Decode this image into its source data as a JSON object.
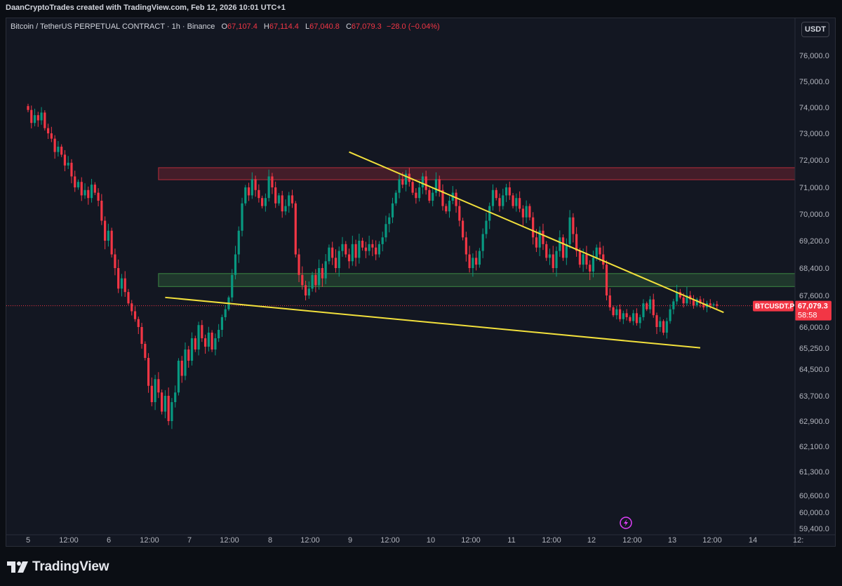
{
  "header": {
    "credit": "DaanCryptoTrades created with TradingView.com, Feb 12, 2026 10:01 UTC+1"
  },
  "legend": {
    "symbol": "Bitcoin / TetherUS PERPETUAL CONTRACT · 1h · Binance",
    "open_key": "O",
    "open": "67,107.4",
    "high_key": "H",
    "high": "67,114.4",
    "low_key": "L",
    "low": "67,040.8",
    "close_key": "C",
    "close": "67,079.3",
    "change": "−28.0 (−0.04%)"
  },
  "currency_button": "USDT",
  "price_axis": {
    "ticks": [
      "76,000.0",
      "75,000.0",
      "74,000.0",
      "73,000.0",
      "72,000.0",
      "71,000.0",
      "70,000.0",
      "69,200.0",
      "68,400.0",
      "67,600.0",
      "66,000.0",
      "65,250.0",
      "64,500.0",
      "63,700.0",
      "62,900.0",
      "62,100.0",
      "61,300.0",
      "60,600.0",
      "60,000.0",
      "59,400.0"
    ],
    "tick_values": [
      76000,
      75000,
      74000,
      73000,
      72000,
      71000,
      70000,
      69200,
      68400,
      67600,
      66000,
      65250,
      64500,
      63700,
      62900,
      62100,
      61300,
      60600,
      60000,
      59400
    ]
  },
  "time_axis": {
    "labels": [
      "5",
      "12:00",
      "6",
      "12:00",
      "7",
      "12:00",
      "8",
      "12:00",
      "9",
      "12:00",
      "10",
      "12:00",
      "11",
      "12:00",
      "12",
      "12:00",
      "13",
      "12:00",
      "14",
      "12:"
    ],
    "start_hours": 0
  },
  "price_tag": {
    "symbol": "BTCUSDT.P",
    "price": "67,079.3",
    "countdown": "58:58",
    "value": 67079.3
  },
  "footer": {
    "brand": "TradingView"
  },
  "colors": {
    "up": "#089981",
    "down": "#f23645",
    "background": "#131722",
    "trendline": "#f2e03c",
    "resistance_zone": "#f23645",
    "support_zone": "#4caf50",
    "alert": "#e040fb"
  },
  "icons": {
    "logo": "tradingview-logo-icon",
    "alert": "lightning-alert-icon"
  },
  "chart_data": {
    "type": "candlestick",
    "x_unit": "hours since Feb 5 00:00",
    "ylim": [
      59200,
      76900
    ],
    "closes": [
      73900,
      73400,
      73700,
      73500,
      73800,
      73200,
      73000,
      72800,
      72300,
      72500,
      72200,
      71800,
      71900,
      71400,
      71000,
      71200,
      70700,
      70900,
      70600,
      71100,
      70800,
      70500,
      69800,
      69200,
      69500,
      68800,
      68400,
      67800,
      68100,
      67700,
      67200,
      66800,
      66400,
      66000,
      65400,
      64900,
      64000,
      63500,
      64200,
      63800,
      63200,
      63700,
      62900,
      63500,
      63800,
      64800,
      64300,
      65200,
      64800,
      65600,
      65200,
      66100,
      65600,
      65300,
      65800,
      65200,
      65600,
      65900,
      66500,
      66900,
      67500,
      68200,
      68800,
      69500,
      70400,
      71000,
      70700,
      71300,
      70900,
      70600,
      70300,
      70600,
      71400,
      71000,
      70400,
      70700,
      70100,
      70300,
      70700,
      70400,
      68800,
      68200,
      67900,
      67600,
      67800,
      68200,
      67900,
      68400,
      68100,
      68600,
      69000,
      68700,
      68400,
      68900,
      69100,
      68800,
      68600,
      69100,
      68700,
      69200,
      69000,
      68900,
      69100,
      69000,
      68800,
      69100,
      69300,
      69700,
      69900,
      70400,
      70800,
      71300,
      71100,
      71500,
      71200,
      70800,
      70600,
      71000,
      71400,
      70900,
      70500,
      70800,
      71300,
      70900,
      70300,
      70100,
      70500,
      70800,
      70300,
      69800,
      69300,
      68800,
      68400,
      68700,
      68500,
      68900,
      69400,
      69800,
      70300,
      70900,
      70600,
      70300,
      70700,
      71000,
      70700,
      70300,
      70600,
      70200,
      69900,
      70300,
      69900,
      69300,
      69000,
      69500,
      69100,
      68700,
      68800,
      68400,
      68900,
      69300,
      68700,
      69100,
      69900,
      69400,
      68900,
      68500,
      68800,
      68500,
      68300,
      68700,
      69000,
      68800,
      68500,
      67600,
      67000,
      66600,
      66900,
      66400,
      66700,
      66500,
      66300,
      66700,
      66200,
      66500,
      67200,
      66900,
      67400,
      66600,
      66000,
      66300,
      65800,
      66300,
      66900,
      67300,
      67700,
      67500,
      67200,
      67600,
      67400,
      67100,
      67400,
      67200,
      67000,
      67200,
      67100,
      67150,
      67079
    ],
    "zones": [
      {
        "name": "resistance",
        "x_from": 39,
        "x_to": 252,
        "y_from": 71280,
        "y_to": 71720
      },
      {
        "name": "support",
        "x_from": 39,
        "x_to": 252,
        "y_from": 67860,
        "y_to": 68240
      }
    ],
    "trendlines": [
      {
        "name": "upper",
        "from": [
          96,
          72300
        ],
        "to": [
          208,
          66740
        ]
      },
      {
        "name": "lower",
        "from": [
          41,
          67500
        ],
        "to": [
          201,
          65260
        ]
      }
    ],
    "grid": false
  }
}
